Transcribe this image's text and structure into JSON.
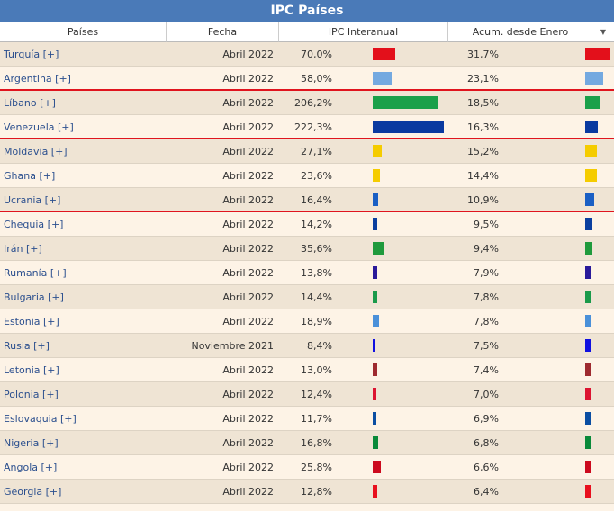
{
  "title": "IPC Países",
  "table": {
    "headers": [
      "Países",
      "Fecha",
      "IPC Interanual",
      "Acum. desde Enero"
    ],
    "rows": [
      {
        "country": "Turquía [+]",
        "date": "Abril 2022",
        "ipc": 70.0,
        "ipc_label": "70,0%",
        "acum": 31.7,
        "acum_label": "31,7%",
        "color": "#e3101b"
      },
      {
        "country": "Argentina [+]",
        "date": "Abril 2022",
        "ipc": 58.0,
        "ipc_label": "58,0%",
        "acum": 23.1,
        "acum_label": "23,1%",
        "color": "#74a9e0"
      },
      {
        "country": "Líbano [+]",
        "date": "Abril 2022",
        "ipc": 206.2,
        "ipc_label": "206,2%",
        "acum": 18.5,
        "acum_label": "18,5%",
        "color": "#1aa04a"
      },
      {
        "country": "Venezuela [+]",
        "date": "Abril 2022",
        "ipc": 222.3,
        "ipc_label": "222,3%",
        "acum": 16.3,
        "acum_label": "16,3%",
        "color": "#0a3aa0"
      },
      {
        "country": "Moldavia [+]",
        "date": "Abril 2022",
        "ipc": 27.1,
        "ipc_label": "27,1%",
        "acum": 15.2,
        "acum_label": "15,2%",
        "color": "#f5cc00"
      },
      {
        "country": "Ghana [+]",
        "date": "Abril 2022",
        "ipc": 23.6,
        "ipc_label": "23,6%",
        "acum": 14.4,
        "acum_label": "14,4%",
        "color": "#f5cc00"
      },
      {
        "country": "Ucrania [+]",
        "date": "Abril 2022",
        "ipc": 16.4,
        "ipc_label": "16,4%",
        "acum": 10.9,
        "acum_label": "10,9%",
        "color": "#1a5fc4"
      },
      {
        "country": "Chequia [+]",
        "date": "Abril 2022",
        "ipc": 14.2,
        "ipc_label": "14,2%",
        "acum": 9.5,
        "acum_label": "9,5%",
        "color": "#0b3f9f"
      },
      {
        "country": "Irán [+]",
        "date": "Abril 2022",
        "ipc": 35.6,
        "ipc_label": "35,6%",
        "acum": 9.4,
        "acum_label": "9,4%",
        "color": "#1f9a3c"
      },
      {
        "country": "Rumanía [+]",
        "date": "Abril 2022",
        "ipc": 13.8,
        "ipc_label": "13,8%",
        "acum": 7.9,
        "acum_label": "7,9%",
        "color": "#2a1a9a"
      },
      {
        "country": "Bulgaria [+]",
        "date": "Abril 2022",
        "ipc": 14.4,
        "ipc_label": "14,4%",
        "acum": 7.8,
        "acum_label": "7,8%",
        "color": "#1a9a4a"
      },
      {
        "country": "Estonia [+]",
        "date": "Abril 2022",
        "ipc": 18.9,
        "ipc_label": "18,9%",
        "acum": 7.8,
        "acum_label": "7,8%",
        "color": "#4a90d9"
      },
      {
        "country": "Rusia [+]",
        "date": "Noviembre 2021",
        "ipc": 8.4,
        "ipc_label": "8,4%",
        "acum": 7.5,
        "acum_label": "7,5%",
        "color": "#1010e0"
      },
      {
        "country": "Letonia [+]",
        "date": "Abril 2022",
        "ipc": 13.0,
        "ipc_label": "13,0%",
        "acum": 7.4,
        "acum_label": "7,4%",
        "color": "#9e2a2f"
      },
      {
        "country": "Polonia [+]",
        "date": "Abril 2022",
        "ipc": 12.4,
        "ipc_label": "12,4%",
        "acum": 7.0,
        "acum_label": "7,0%",
        "color": "#dc1431"
      },
      {
        "country": "Eslovaquia [+]",
        "date": "Abril 2022",
        "ipc": 11.7,
        "ipc_label": "11,7%",
        "acum": 6.9,
        "acum_label": "6,9%",
        "color": "#0b4ea2"
      },
      {
        "country": "Nigeria [+]",
        "date": "Abril 2022",
        "ipc": 16.8,
        "ipc_label": "16,8%",
        "acum": 6.8,
        "acum_label": "6,8%",
        "color": "#0a8a3a"
      },
      {
        "country": "Angola [+]",
        "date": "Abril 2022",
        "ipc": 25.8,
        "ipc_label": "25,8%",
        "acum": 6.6,
        "acum_label": "6,6%",
        "color": "#cc0a1e"
      },
      {
        "country": "Georgia [+]",
        "date": "Abril 2022",
        "ipc": 12.8,
        "ipc_label": "12,8%",
        "acum": 6.4,
        "acum_label": "6,4%",
        "color": "#e8101e"
      }
    ]
  }
}
